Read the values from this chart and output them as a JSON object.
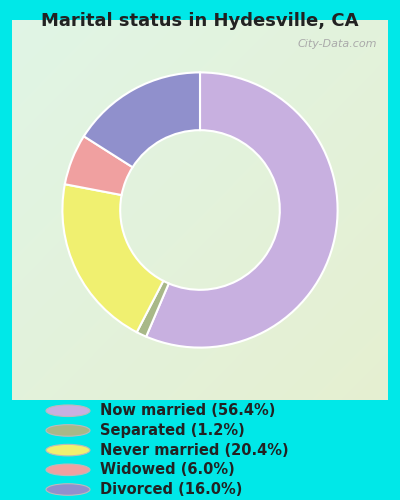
{
  "title": "Marital status in Hydesville, CA",
  "slices": [
    {
      "label": "Now married (56.4%)",
      "value": 56.4,
      "color": "#c8b0e0"
    },
    {
      "label": "Separated (1.2%)",
      "value": 1.2,
      "color": "#a8b888"
    },
    {
      "label": "Never married (20.4%)",
      "value": 20.4,
      "color": "#f0f070"
    },
    {
      "label": "Widowed (6.0%)",
      "value": 6.0,
      "color": "#f0a0a0"
    },
    {
      "label": "Divorced (16.0%)",
      "value": 16.0,
      "color": "#9090cc"
    }
  ],
  "bg_outer": "#00e8e8",
  "title_fontsize": 13,
  "title_color": "#222222",
  "legend_fontsize": 10.5,
  "legend_color": "#222222",
  "watermark": "City-Data.com",
  "chart_bg_color1": [
    0.88,
    0.96,
    0.9
  ],
  "chart_bg_color2": [
    0.9,
    0.94,
    0.82
  ]
}
